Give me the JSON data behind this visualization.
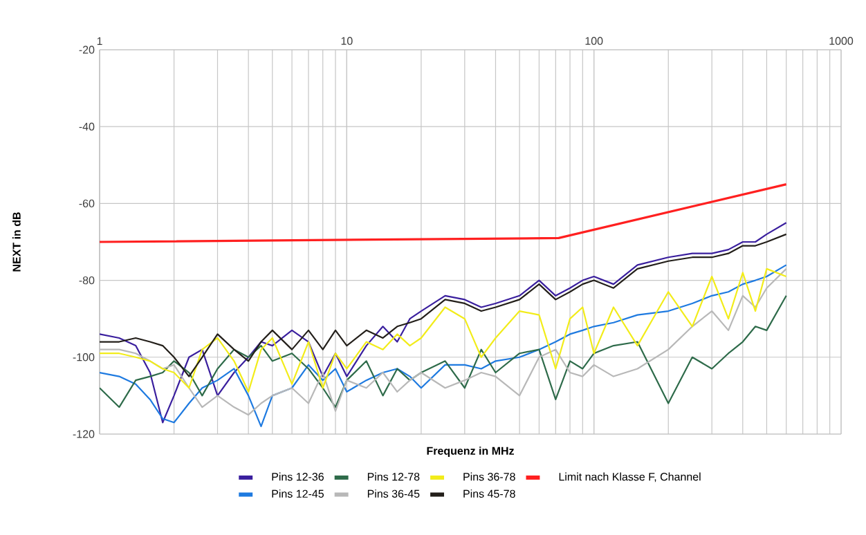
{
  "chart_data": {
    "type": "line",
    "xlabel": "Frequenz in MHz",
    "ylabel": "NEXT in dB",
    "log": "x",
    "grid": true,
    "legend": "bottom",
    "marker": "none",
    "line_style": "solid",
    "xlim": [
      1,
      1000
    ],
    "ylim": [
      -120,
      -20
    ],
    "xticks": [
      1,
      10,
      100,
      1000
    ],
    "yticks": [
      -120,
      -100,
      -80,
      -60,
      -40,
      -20
    ],
    "x": [
      1,
      1.2,
      1.4,
      1.6,
      1.8,
      2,
      2.3,
      2.6,
      3,
      3.5,
      4,
      4.5,
      5,
      6,
      7,
      8,
      9,
      10,
      12,
      14,
      16,
      18,
      20,
      25,
      30,
      35,
      40,
      50,
      60,
      70,
      80,
      90,
      100,
      120,
      150,
      200,
      250,
      300,
      350,
      400,
      450,
      500,
      600
    ],
    "series": [
      {
        "name": "Pins 12-36",
        "color": "#3a1f9e",
        "values": [
          -94,
          -95,
          -97,
          -104,
          -117,
          -110,
          -100,
          -98,
          -110,
          -104,
          -100,
          -96,
          -97,
          -93,
          -96,
          -105,
          -99,
          -105,
          -97,
          -92,
          -96,
          -90,
          -88,
          -84,
          -85,
          -87,
          -86,
          -84,
          -80,
          -84,
          -82,
          -80,
          -79,
          -81,
          -76,
          -74,
          -73,
          -73,
          -72,
          -70,
          -70,
          -68,
          -65
        ]
      },
      {
        "name": "Pins 12-45",
        "color": "#1e7ae0",
        "values": [
          -104,
          -105,
          -107,
          -111,
          -116,
          -117,
          -112,
          -108,
          -106,
          -103,
          -110,
          -118,
          -110,
          -108,
          -102,
          -106,
          -103,
          -109,
          -106,
          -104,
          -103,
          -105,
          -108,
          -102,
          -102,
          -103,
          -101,
          -100,
          -98,
          -96,
          -94,
          -93,
          -92,
          -91,
          -89,
          -88,
          -86,
          -84,
          -83,
          -81,
          -80,
          -79,
          -76
        ]
      },
      {
        "name": "Pins 12-78",
        "color": "#2e6b4a",
        "values": [
          -108,
          -113,
          -106,
          -105,
          -104,
          -101,
          -104,
          -110,
          -103,
          -98,
          -100,
          -97,
          -101,
          -99,
          -103,
          -108,
          -113,
          -106,
          -101,
          -110,
          -103,
          -106,
          -104,
          -101,
          -108,
          -98,
          -104,
          -99,
          -98,
          -111,
          -101,
          -103,
          -99,
          -97,
          -96,
          -112,
          -100,
          -103,
          -99,
          -96,
          -92,
          -93,
          -84
        ]
      },
      {
        "name": "Pins 36-45",
        "color": "#b8b8b8",
        "values": [
          -98,
          -98,
          -99,
          -101,
          -103,
          -102,
          -108,
          -113,
          -110,
          -113,
          -115,
          -112,
          -110,
          -108,
          -112,
          -104,
          -114,
          -106,
          -108,
          -104,
          -109,
          -106,
          -104,
          -108,
          -106,
          -104,
          -105,
          -110,
          -100,
          -98,
          -104,
          -105,
          -102,
          -105,
          -103,
          -98,
          -92,
          -88,
          -93,
          -84,
          -87,
          -82,
          -77
        ]
      },
      {
        "name": "Pins 36-78",
        "color": "#f2ec1a",
        "values": [
          -99,
          -99,
          -100,
          -101,
          -103,
          -104,
          -108,
          -98,
          -95,
          -101,
          -109,
          -98,
          -95,
          -107,
          -96,
          -108,
          -99,
          -103,
          -96,
          -98,
          -94,
          -97,
          -95,
          -87,
          -90,
          -100,
          -95,
          -88,
          -89,
          -103,
          -90,
          -87,
          -99,
          -87,
          -97,
          -83,
          -92,
          -79,
          -90,
          -78,
          -88,
          -77,
          -79
        ]
      },
      {
        "name": "Pins 45-78",
        "color": "#231f1a",
        "values": [
          -96,
          -96,
          -95,
          -96,
          -97,
          -100,
          -105,
          -100,
          -94,
          -98,
          -101,
          -96,
          -93,
          -98,
          -93,
          -98,
          -93,
          -97,
          -93,
          -95,
          -92,
          -91,
          -90,
          -85,
          -86,
          -88,
          -87,
          -85,
          -81,
          -85,
          -83,
          -81,
          -80,
          -82,
          -77,
          -75,
          -74,
          -74,
          -73,
          -71,
          -71,
          -70,
          -68
        ]
      },
      {
        "name": "Limit nach Klasse F, Channel",
        "color": "#ff2020",
        "x": [
          1,
          72,
          600
        ],
        "values": [
          -70,
          -69,
          -55
        ]
      }
    ]
  }
}
